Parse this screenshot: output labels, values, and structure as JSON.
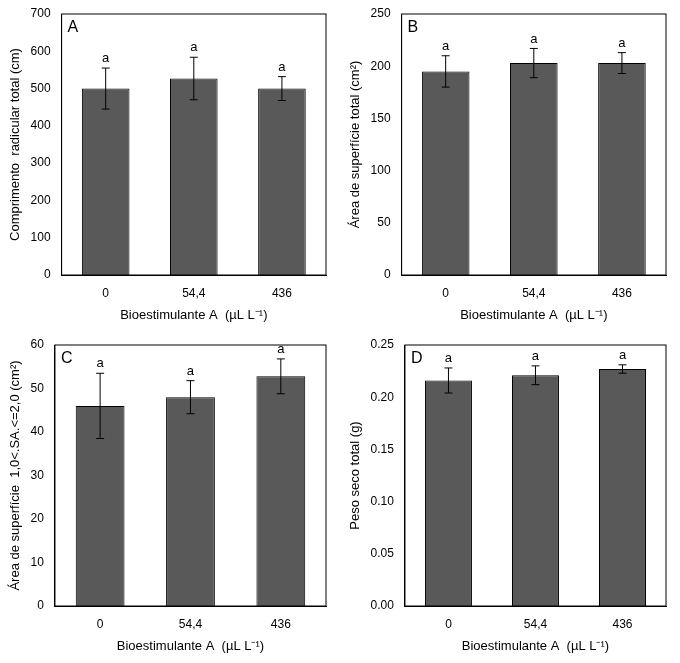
{
  "chart_data": [
    {
      "type": "bar",
      "title": "A",
      "categories": [
        "0",
        "54,4",
        "436"
      ],
      "values": [
        500,
        527,
        500
      ],
      "errors": [
        55,
        57,
        32
      ],
      "annotations": [
        "a",
        "a",
        "a"
      ],
      "color": "#595959",
      "x_label": "Bioestimulante A  (µL L⁻¹)",
      "y_label": "Comprimento  radicular total (cm)",
      "ylim": [
        0,
        700
      ],
      "yticks": [
        0,
        100,
        200,
        300,
        400,
        500,
        600,
        700
      ],
      "grid": false
    },
    {
      "type": "bar",
      "title": "B",
      "categories": [
        "0",
        "54,4",
        "436"
      ],
      "values": [
        195,
        203,
        203
      ],
      "errors": [
        15,
        14,
        10
      ],
      "annotations": [
        "a",
        "a",
        "a"
      ],
      "color": "#595959",
      "x_label": "Bioestimulante A  (µL L⁻¹)",
      "y_label": "Área de superfície total (cm²)",
      "ylim": [
        0,
        250
      ],
      "yticks": [
        0,
        50,
        100,
        150,
        200,
        250
      ],
      "grid": false
    },
    {
      "type": "bar",
      "title": "C",
      "categories": [
        "0",
        "54,4",
        "436"
      ],
      "values": [
        46,
        48,
        52.8
      ],
      "errors": [
        7.5,
        3.8,
        4
      ],
      "annotations": [
        "a",
        "a",
        "a"
      ],
      "color": "#595959",
      "x_label": "Bioestimulante A  (µL L⁻¹)",
      "y_label": "Área de superfície  1,0<.SA.<=2,0 (cm²)",
      "ylim": [
        0,
        60
      ],
      "yticks": [
        0,
        10,
        20,
        30,
        40,
        50,
        60
      ],
      "grid": false
    },
    {
      "type": "bar",
      "title": "D",
      "categories": [
        "0",
        "54,4",
        "436"
      ],
      "values": [
        0.216,
        0.221,
        0.227
      ],
      "errors": [
        0.012,
        0.009,
        0.004
      ],
      "annotations": [
        "a",
        "a",
        "a"
      ],
      "color": "#595959",
      "x_label": "Bioestimulante A  (µL L⁻¹)",
      "y_label": "Peso seco total (g)",
      "ylim": [
        0,
        0.25
      ],
      "yticks": [
        {
          "value": 0,
          "label": "0.00"
        },
        {
          "value": 0.05,
          "label": "0.05"
        },
        {
          "value": 0.1,
          "label": "0.10"
        },
        {
          "value": 0.15,
          "label": "0.15"
        },
        {
          "value": 0.2,
          "label": "0.20"
        },
        {
          "value": 0.25,
          "label": "0.25"
        }
      ],
      "grid": false
    }
  ]
}
